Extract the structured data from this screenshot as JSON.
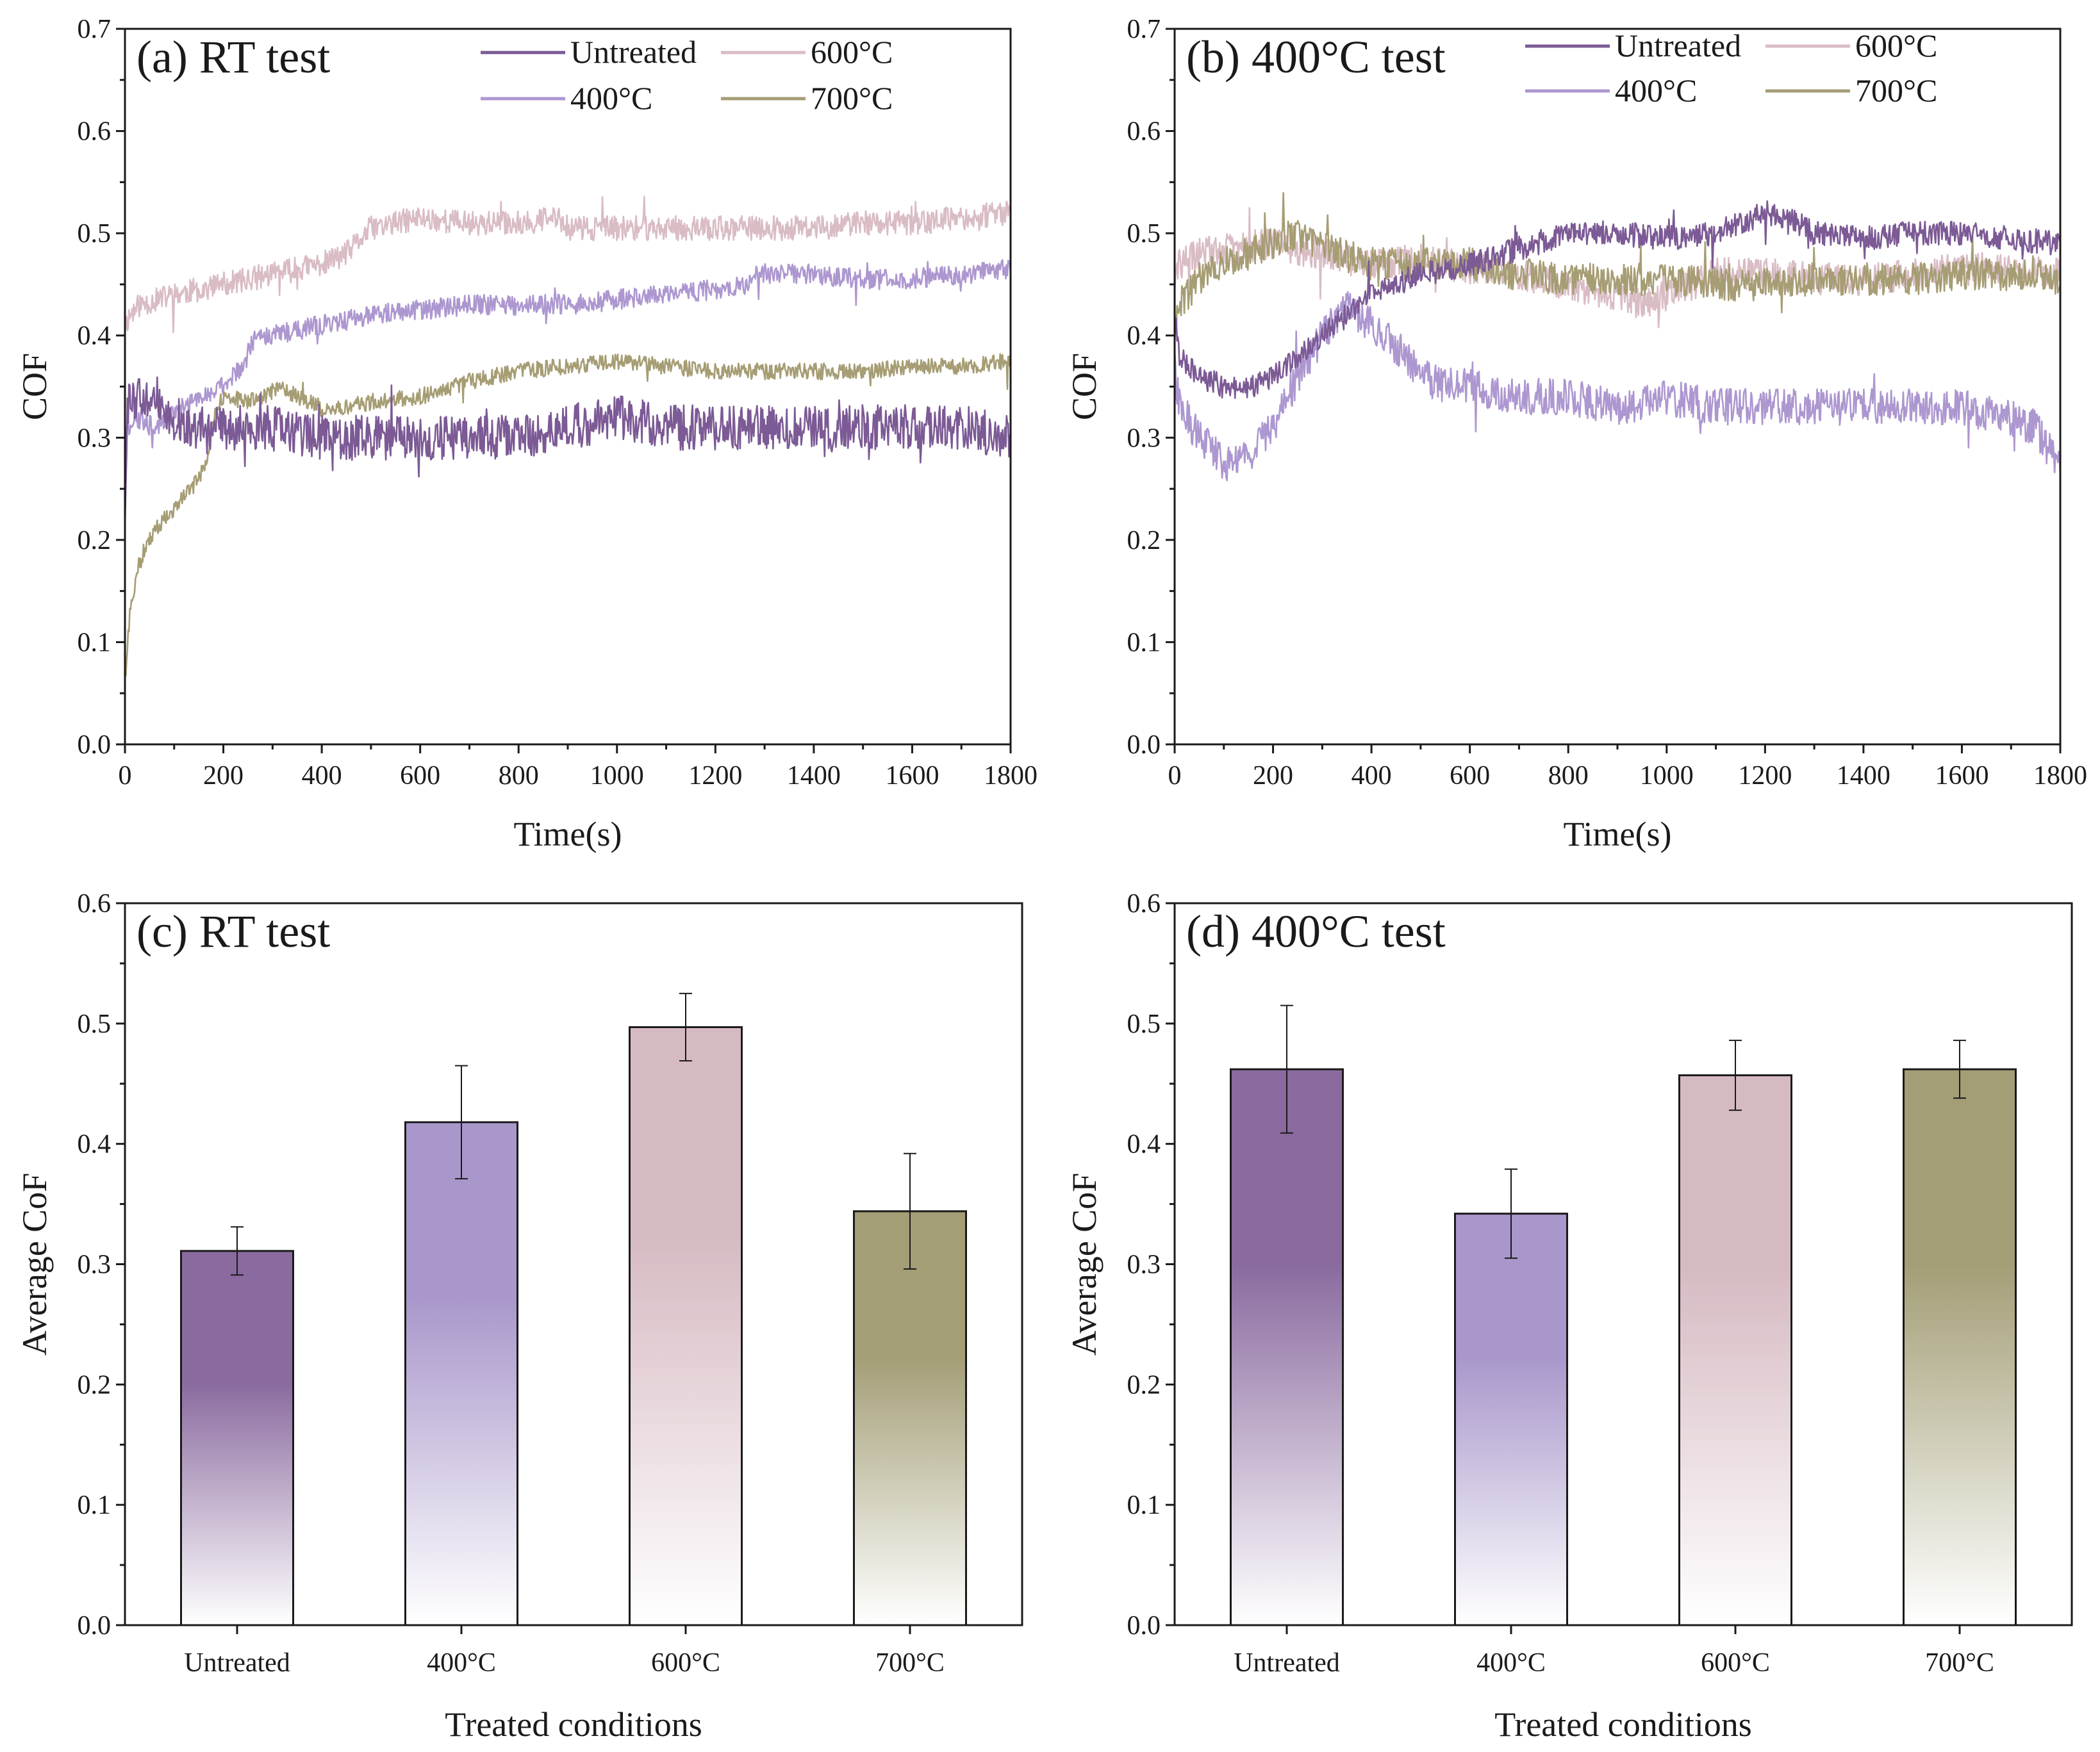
{
  "chart_data": [
    {
      "id": "a",
      "type": "line",
      "title": "(a) RT test",
      "xlabel": "Time(s)",
      "ylabel": "COF",
      "xlim": [
        0,
        1800
      ],
      "ylim": [
        0.0,
        0.7
      ],
      "xticks": [
        "0",
        "200",
        "400",
        "600",
        "800",
        "1000",
        "1200",
        "1400",
        "1600",
        "1800"
      ],
      "yticks": [
        "0.0",
        "0.1",
        "0.2",
        "0.3",
        "0.4",
        "0.5",
        "0.6",
        "0.7"
      ],
      "legend": "top-right",
      "noise_seed": 11,
      "series": [
        {
          "name": "Untreated",
          "color": "#7c5a95",
          "noise": 0.022,
          "x": [
            0,
            5,
            20,
            50,
            100,
            150,
            200,
            250,
            300,
            400,
            500,
            600,
            700,
            800,
            900,
            1000,
            1100,
            1200,
            1300,
            1400,
            1500,
            1600,
            1700,
            1800
          ],
          "y": [
            0.22,
            0.33,
            0.34,
            0.33,
            0.32,
            0.31,
            0.31,
            0.31,
            0.31,
            0.3,
            0.3,
            0.3,
            0.3,
            0.3,
            0.31,
            0.32,
            0.31,
            0.31,
            0.31,
            0.31,
            0.31,
            0.31,
            0.31,
            0.3
          ]
        },
        {
          "name": "400°C",
          "color": "#ad97d0",
          "noise": 0.01,
          "x": [
            0,
            5,
            20,
            60,
            120,
            200,
            240,
            260,
            300,
            400,
            500,
            600,
            700,
            800,
            900,
            1000,
            1100,
            1200,
            1260,
            1280,
            1400,
            1500,
            1600,
            1700,
            1800
          ],
          "y": [
            0.28,
            0.31,
            0.32,
            0.31,
            0.33,
            0.35,
            0.37,
            0.395,
            0.4,
            0.41,
            0.42,
            0.425,
            0.43,
            0.43,
            0.43,
            0.435,
            0.44,
            0.445,
            0.45,
            0.46,
            0.46,
            0.455,
            0.455,
            0.46,
            0.465
          ]
        },
        {
          "name": "600°C",
          "color": "#d9bcc4",
          "noise": 0.012,
          "x": [
            0,
            10,
            30,
            100,
            200,
            300,
            400,
            450,
            500,
            550,
            600,
            700,
            800,
            880,
            900,
            1000,
            1100,
            1200,
            1300,
            1400,
            1500,
            1600,
            1700,
            1800
          ],
          "y": [
            0.41,
            0.42,
            0.43,
            0.44,
            0.45,
            0.46,
            0.47,
            0.48,
            0.505,
            0.51,
            0.515,
            0.51,
            0.51,
            0.515,
            0.505,
            0.505,
            0.505,
            0.505,
            0.505,
            0.505,
            0.51,
            0.51,
            0.515,
            0.52
          ]
        },
        {
          "name": "700°C",
          "color": "#a69d74",
          "noise": 0.008,
          "x": [
            0,
            10,
            30,
            60,
            100,
            150,
            170,
            180,
            200,
            250,
            300,
            320,
            350,
            400,
            450,
            500,
            600,
            700,
            800,
            900,
            1000,
            1100,
            1200,
            1300,
            1400,
            1500,
            1600,
            1700,
            1800
          ],
          "y": [
            0.06,
            0.13,
            0.18,
            0.21,
            0.23,
            0.26,
            0.28,
            0.32,
            0.34,
            0.335,
            0.345,
            0.35,
            0.34,
            0.33,
            0.33,
            0.335,
            0.34,
            0.355,
            0.365,
            0.37,
            0.375,
            0.37,
            0.365,
            0.365,
            0.365,
            0.365,
            0.37,
            0.37,
            0.375
          ]
        }
      ]
    },
    {
      "id": "b",
      "type": "line",
      "title": "(b) 400°C test",
      "xlabel": "Time(s)",
      "ylabel": "COF",
      "xlim": [
        0,
        1800
      ],
      "ylim": [
        0.0,
        0.7
      ],
      "xticks": [
        "0",
        "200",
        "400",
        "600",
        "800",
        "1000",
        "1200",
        "1400",
        "1600",
        "1800"
      ],
      "yticks": [
        "0.0",
        "0.1",
        "0.2",
        "0.3",
        "0.4",
        "0.5",
        "0.6",
        "0.7"
      ],
      "legend": "top-right",
      "noise_seed": 29,
      "series": [
        {
          "name": "Untreated",
          "color": "#7c5a95",
          "noise": 0.012,
          "x": [
            0,
            10,
            50,
            100,
            150,
            200,
            300,
            400,
            500,
            600,
            700,
            800,
            900,
            1000,
            1100,
            1150,
            1200,
            1250,
            1300,
            1400,
            1500,
            1600,
            1700,
            1800
          ],
          "y": [
            0.42,
            0.38,
            0.36,
            0.35,
            0.35,
            0.36,
            0.4,
            0.44,
            0.46,
            0.47,
            0.485,
            0.5,
            0.5,
            0.495,
            0.5,
            0.51,
            0.52,
            0.515,
            0.5,
            0.495,
            0.5,
            0.5,
            0.495,
            0.49
          ]
        },
        {
          "name": "400°C",
          "color": "#ad97d0",
          "noise": 0.018,
          "x": [
            0,
            10,
            50,
            100,
            150,
            200,
            250,
            300,
            350,
            400,
            450,
            500,
            550,
            600,
            700,
            800,
            900,
            1000,
            1100,
            1200,
            1300,
            1400,
            1500,
            1600,
            1700,
            1750,
            1800
          ],
          "y": [
            0.37,
            0.33,
            0.3,
            0.275,
            0.28,
            0.31,
            0.36,
            0.4,
            0.43,
            0.41,
            0.39,
            0.36,
            0.35,
            0.35,
            0.34,
            0.34,
            0.33,
            0.34,
            0.33,
            0.33,
            0.33,
            0.33,
            0.33,
            0.33,
            0.32,
            0.31,
            0.27
          ]
        },
        {
          "name": "600°C",
          "color": "#d9bcc4",
          "noise": 0.016,
          "x": [
            0,
            10,
            50,
            100,
            200,
            300,
            400,
            500,
            600,
            700,
            800,
            900,
            950,
            1000,
            1100,
            1200,
            1300,
            1400,
            1500,
            1600,
            1700,
            1800
          ],
          "y": [
            0.45,
            0.47,
            0.48,
            0.485,
            0.49,
            0.48,
            0.47,
            0.475,
            0.465,
            0.46,
            0.45,
            0.44,
            0.43,
            0.44,
            0.46,
            0.46,
            0.455,
            0.455,
            0.46,
            0.465,
            0.465,
            0.46
          ]
        },
        {
          "name": "700°C",
          "color": "#a69d74",
          "noise": 0.016,
          "x": [
            0,
            10,
            50,
            100,
            150,
            200,
            250,
            300,
            400,
            500,
            600,
            700,
            800,
            900,
            1000,
            1100,
            1200,
            1300,
            1400,
            1500,
            1600,
            1700,
            1800
          ],
          "y": [
            0.4,
            0.43,
            0.455,
            0.47,
            0.48,
            0.49,
            0.5,
            0.485,
            0.47,
            0.47,
            0.47,
            0.46,
            0.455,
            0.455,
            0.455,
            0.45,
            0.45,
            0.455,
            0.455,
            0.455,
            0.46,
            0.46,
            0.455
          ]
        }
      ]
    },
    {
      "id": "c",
      "type": "bar",
      "title": "(c) RT test",
      "xlabel": "Treated conditions",
      "ylabel": "Average CoF",
      "ylim": [
        0.0,
        0.6
      ],
      "yticks": [
        "0.0",
        "0.1",
        "0.2",
        "0.3",
        "0.4",
        "0.5",
        "0.6"
      ],
      "categories": [
        "Untreated",
        "400°C",
        "600°C",
        "700°C"
      ],
      "values": [
        0.311,
        0.418,
        0.497,
        0.344
      ],
      "errors": [
        0.02,
        0.047,
        0.028,
        0.048
      ],
      "colors": [
        "#8a6a9f",
        "#a997cb",
        "#d6bac2",
        "#a39e76"
      ]
    },
    {
      "id": "d",
      "type": "bar",
      "title": "(d) 400°C test",
      "xlabel": "Treated conditions",
      "ylabel": "Average CoF",
      "ylim": [
        0.0,
        0.6
      ],
      "yticks": [
        "0.0",
        "0.1",
        "0.2",
        "0.3",
        "0.4",
        "0.5",
        "0.6"
      ],
      "categories": [
        "Untreated",
        "400°C",
        "600°C",
        "700°C"
      ],
      "values": [
        0.462,
        0.342,
        0.457,
        0.462
      ],
      "errors": [
        0.053,
        0.037,
        0.029,
        0.024
      ],
      "colors": [
        "#8a6a9f",
        "#a997cb",
        "#d6bac2",
        "#a39e76"
      ]
    }
  ]
}
